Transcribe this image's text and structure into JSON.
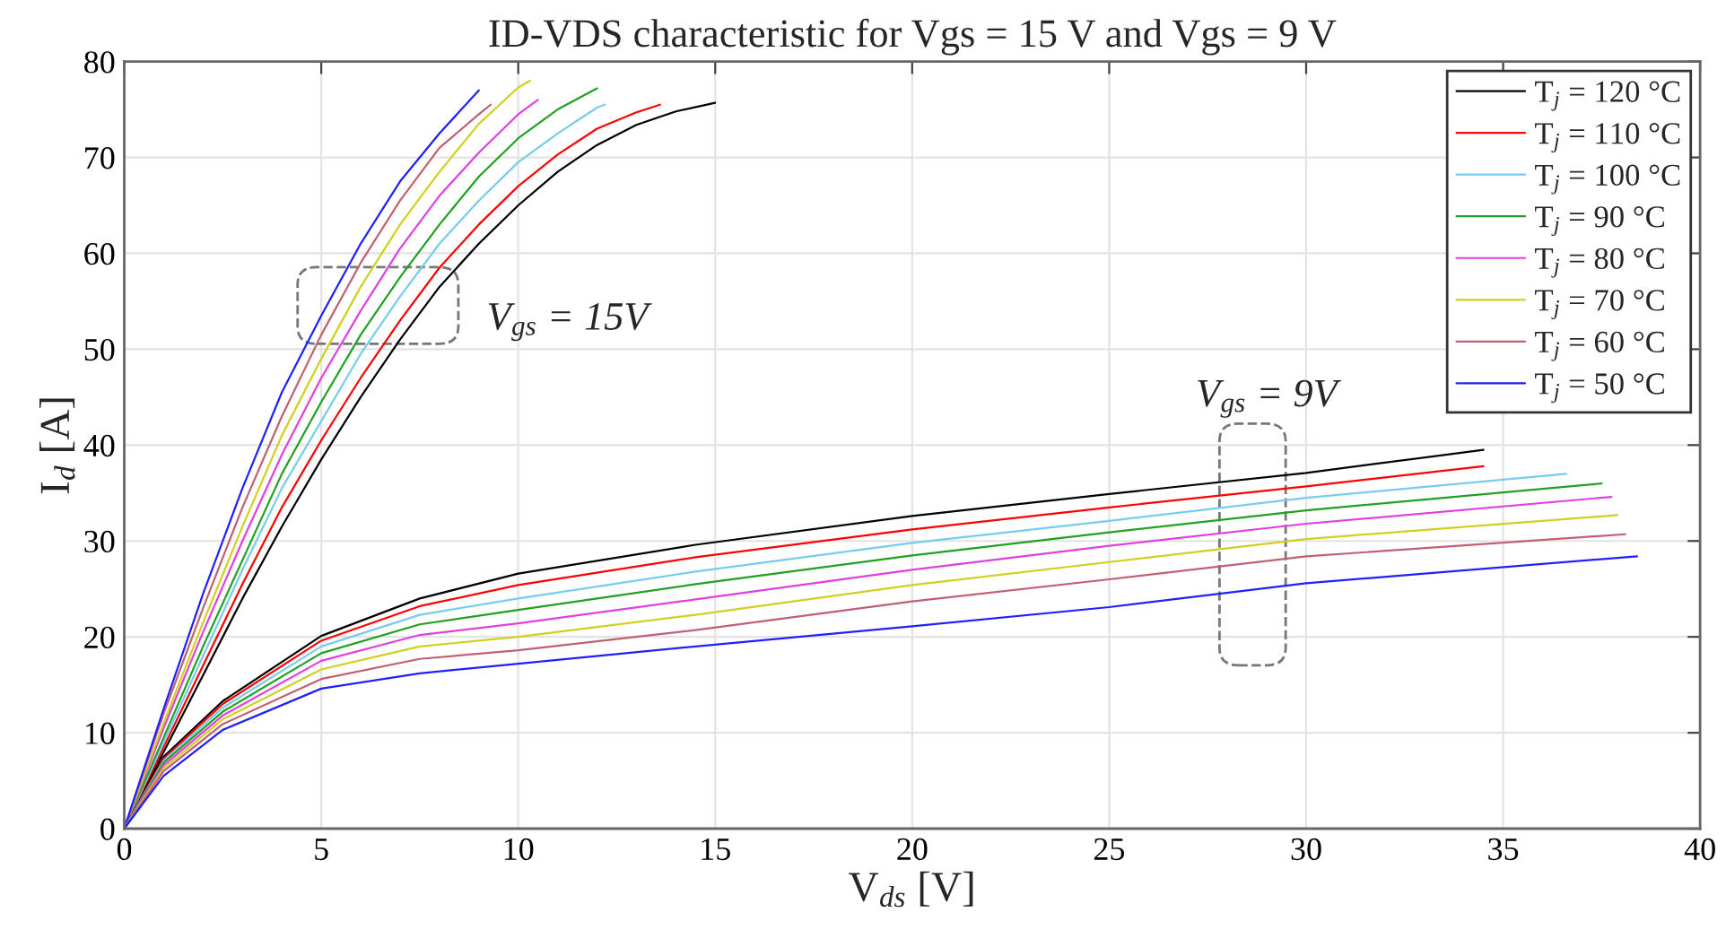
{
  "chart_data": {
    "type": "line",
    "title": "ID-VDS characteristic for Vgs = 15 V and Vgs = 9 V",
    "xlabel": "V$_{ds}$ [V]",
    "ylabel": "I$_{d}$ [A]",
    "xlim": [
      0,
      40
    ],
    "ylim": [
      0,
      80
    ],
    "xticks": [
      0,
      5,
      10,
      15,
      20,
      25,
      30,
      35,
      40
    ],
    "yticks": [
      0,
      10,
      20,
      30,
      40,
      50,
      60,
      70,
      80
    ],
    "grid": true,
    "legend": "top right",
    "marker": "none",
    "line_style": "solid",
    "annotations": [
      "V$_{gs}$ = 15V",
      "V$_{gs}$ = 9V"
    ],
    "series": [
      {
        "name": "T$_{j}$ = 120 °C",
        "color": "#000000",
        "x": [
          0,
          1,
          2,
          3,
          4,
          5,
          6,
          7,
          8,
          9,
          10,
          11,
          12,
          13,
          14,
          15
        ],
        "values": [
          0,
          8,
          16,
          24,
          31.5,
          38.5,
          45,
          51,
          56.5,
          61,
          65,
          68.5,
          71.3,
          73.4,
          74.8,
          75.7
        ]
      },
      {
        "name": "T$_{j}$ = 110 °C",
        "color": "#ff0000",
        "x": [
          0,
          1,
          2,
          3,
          4,
          5,
          6,
          7,
          8,
          9,
          10,
          11,
          12,
          13,
          13.6
        ],
        "values": [
          0,
          8.5,
          17,
          25.5,
          33.5,
          40.5,
          47,
          53,
          58.5,
          63,
          67,
          70.3,
          73,
          74.7,
          75.5
        ]
      },
      {
        "name": "T$_{j}$ = 100 °C",
        "color": "#77ccee",
        "x": [
          0,
          1,
          2,
          3,
          4,
          5,
          6,
          7,
          8,
          9,
          10,
          11,
          12,
          12.2
        ],
        "values": [
          0,
          9,
          18,
          27,
          35.5,
          42.5,
          49.5,
          55.5,
          61,
          65.5,
          69.5,
          72.5,
          75.2,
          75.5
        ]
      },
      {
        "name": "T$_{j}$ = 90 °C",
        "color": "#22a022",
        "x": [
          0,
          1,
          2,
          3,
          4,
          5,
          6,
          7,
          8,
          9,
          10,
          11,
          12
        ],
        "values": [
          0,
          9.5,
          19,
          28,
          37,
          44.5,
          51.5,
          57.5,
          63,
          68,
          72,
          75,
          77.2
        ]
      },
      {
        "name": "T$_{j}$ = 80 °C",
        "color": "#e040e0",
        "x": [
          0,
          1,
          2,
          3,
          4,
          5,
          6,
          7,
          8,
          9,
          10,
          10.5
        ],
        "values": [
          0,
          10.5,
          20.5,
          30,
          39,
          47,
          54,
          60.5,
          66,
          70.5,
          74.5,
          76
        ]
      },
      {
        "name": "T$_{j}$ = 70 °C",
        "color": "#d0d020",
        "x": [
          0,
          1,
          2,
          3,
          4,
          5,
          6,
          7,
          8,
          9,
          10,
          10.3
        ],
        "values": [
          0,
          11,
          21.5,
          31.5,
          41,
          49,
          56.5,
          63,
          68.5,
          73.5,
          77.3,
          78
        ]
      },
      {
        "name": "T$_{j}$ = 60 °C",
        "color": "#c06070",
        "x": [
          0,
          1,
          2,
          3,
          4,
          5,
          6,
          7,
          8,
          9,
          9.3
        ],
        "values": [
          0,
          12,
          23,
          33.5,
          43,
          51.5,
          59,
          65.5,
          71,
          74.5,
          75.5
        ]
      },
      {
        "name": "T$_{j}$ = 50 °C",
        "color": "#2020ff",
        "x": [
          0,
          1,
          2,
          3,
          4,
          5,
          6,
          7,
          8,
          9
        ],
        "values": [
          0,
          12.5,
          24.5,
          35.5,
          45.5,
          53.5,
          61,
          67.5,
          72.5,
          77
        ]
      },
      {
        "color": "#000000",
        "x": [
          0,
          1,
          2.5,
          5,
          7.5,
          10,
          14.5,
          20,
          25,
          30,
          34.5
        ],
        "values": [
          0,
          7.5,
          13.3,
          20.1,
          24,
          26.6,
          29.6,
          32.6,
          34.9,
          37.1,
          39.5
        ]
      },
      {
        "color": "#ff0000",
        "x": [
          0,
          1,
          2.5,
          5,
          7.5,
          10,
          14.5,
          20,
          25,
          30,
          34.5
        ],
        "values": [
          0,
          7.3,
          13.0,
          19.6,
          23.2,
          25.4,
          28.3,
          31.2,
          33.5,
          35.7,
          37.8
        ]
      },
      {
        "color": "#77ccee",
        "x": [
          0,
          1,
          2.5,
          5,
          7.5,
          10,
          14.5,
          20,
          25,
          30,
          36.6
        ],
        "values": [
          0,
          7.1,
          12.6,
          19.0,
          22.3,
          24.0,
          26.8,
          29.8,
          32.1,
          34.5,
          37.0
        ]
      },
      {
        "color": "#22a022",
        "x": [
          0,
          1,
          2.5,
          5,
          7.5,
          10,
          14.5,
          20,
          25,
          30,
          37.5
        ],
        "values": [
          0,
          6.9,
          12.2,
          18.3,
          21.3,
          22.8,
          25.5,
          28.5,
          30.9,
          33.2,
          36.0
        ]
      },
      {
        "color": "#e040e0",
        "x": [
          0,
          1,
          2.5,
          5,
          7.5,
          10,
          14.5,
          20,
          25,
          30,
          37.75
        ],
        "values": [
          0,
          6.6,
          11.8,
          17.5,
          20.2,
          21.4,
          23.9,
          27.0,
          29.5,
          31.8,
          34.6
        ]
      },
      {
        "color": "#d0d020",
        "x": [
          0,
          1,
          2.5,
          5,
          7.5,
          10,
          14.5,
          20,
          25,
          30,
          37.9
        ],
        "values": [
          0,
          6.3,
          11.4,
          16.6,
          19.0,
          20.0,
          22.3,
          25.4,
          27.8,
          30.2,
          32.7
        ]
      },
      {
        "color": "#c06070",
        "x": [
          0,
          1,
          2.5,
          5,
          7.5,
          10,
          14.5,
          20,
          25,
          30,
          38.1
        ],
        "values": [
          0,
          6.0,
          10.9,
          15.6,
          17.7,
          18.6,
          20.7,
          23.7,
          26.0,
          28.4,
          30.7
        ]
      },
      {
        "color": "#2020ff",
        "x": [
          0,
          1,
          2.5,
          5,
          7.5,
          10,
          14.5,
          20,
          25,
          30,
          38.4
        ],
        "values": [
          0,
          5.5,
          10.3,
          14.6,
          16.2,
          17.2,
          19.0,
          21.1,
          23.1,
          25.6,
          28.4
        ]
      }
    ]
  }
}
